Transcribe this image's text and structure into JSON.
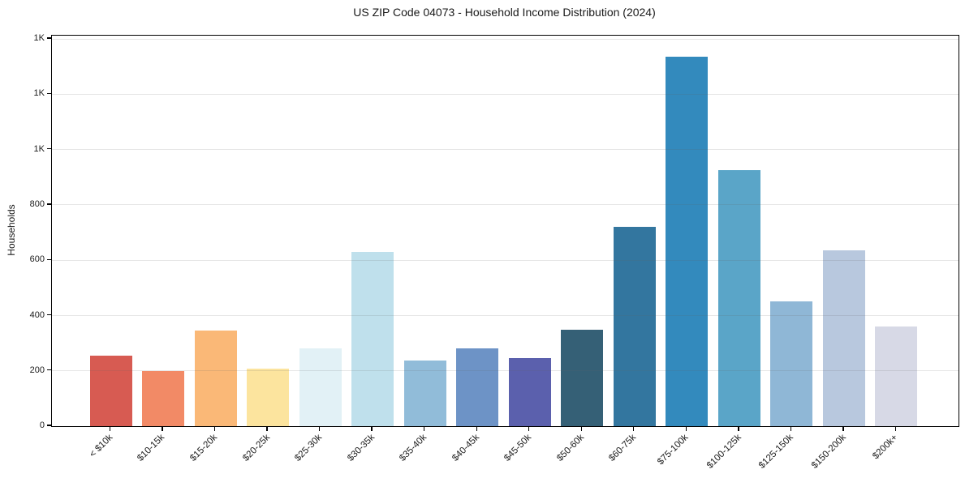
{
  "chart_data": {
    "type": "bar",
    "title": "US ZIP Code 04073 - Household Income Distribution (2024)",
    "xlabel": "",
    "ylabel": "Households",
    "categories": [
      "< $10k",
      "$10-15k",
      "$15-20k",
      "$20-25k",
      "$25-30k",
      "$30-35k",
      "$35-40k",
      "$40-45k",
      "$45-50k",
      "$50-60k",
      "$60-75k",
      "$75-100k",
      "$100-125k",
      "$125-150k",
      "$150-200k",
      "$200k+"
    ],
    "values": [
      256,
      198,
      345,
      207,
      281,
      630,
      238,
      281,
      246,
      350,
      722,
      1337,
      927,
      452,
      636,
      360
    ],
    "bar_colors": [
      "#d75b52",
      "#f28a66",
      "#fab877",
      "#fce49e",
      "#e2f1f6",
      "#bfe0ec",
      "#91bcd9",
      "#6d93c6",
      "#5b60ad",
      "#356076",
      "#33769f",
      "#338abd",
      "#5aa5c8",
      "#8fb7d6",
      "#b8c8de",
      "#d7d9e6"
    ],
    "ylim": [
      0,
      1412
    ],
    "yticks": [
      0,
      200,
      400,
      600,
      800,
      1000,
      1200,
      1400
    ],
    "ytick_labels": [
      "0",
      "200",
      "400",
      "600",
      "800",
      "1K",
      "1K",
      "1K"
    ],
    "grid": "horizontal",
    "gridline_color": "rgba(100,100,100,0.16)",
    "legend": "none",
    "spine_color": "#000000",
    "text_color": "#1a1a1a",
    "background_color": "#ffffff"
  }
}
